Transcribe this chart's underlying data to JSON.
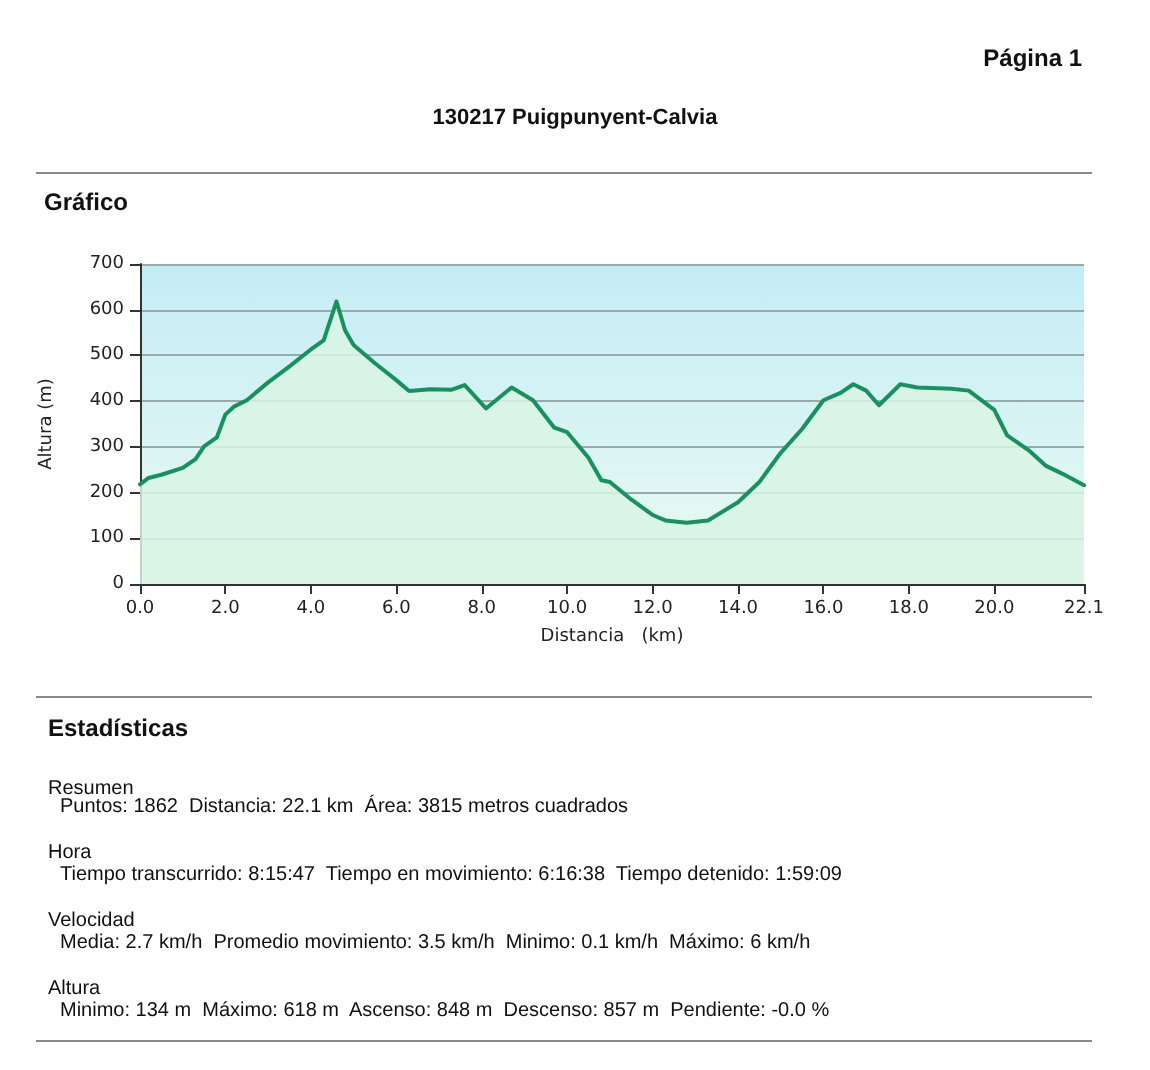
{
  "chart_data": {
    "type": "area",
    "title": "130217 Puigpunyent-Calvia",
    "xlabel": "Distancia   (km)",
    "ylabel": "Altura (m)",
    "annotations": [
      "Página 1",
      "Gráfico",
      "Estadísticas",
      "Resumen",
      "Puntos: 1862  Distancia: 22.1 km  Área: 3815 metros cuadrados",
      "Hora",
      "Tiempo transcurrido: 8:15:47  Tiempo en movimiento: 6:16:38  Tiempo detenido: 1:59:09",
      "Velocidad",
      "Media: 2.7 km/h  Promedio movimiento: 3.5 km/h  Minimo: 0.1 km/h  Máximo: 6 km/h",
      "Altura",
      "Minimo: 134 m  Máximo: 618 m  Ascenso: 848 m  Descenso: 857 m  Pendiente: -0.0 %"
    ],
    "x": [
      0,
      0.2,
      0.5,
      1.0,
      1.3,
      1.5,
      1.8,
      2.0,
      2.2,
      2.5,
      3.0,
      3.5,
      4.0,
      4.3,
      4.6,
      4.8,
      5.0,
      5.5,
      6.0,
      6.3,
      6.8,
      7.3,
      7.6,
      8.1,
      8.7,
      9.2,
      9.7,
      10.0,
      10.5,
      10.8,
      11.0,
      11.5,
      12.0,
      12.3,
      12.8,
      13.3,
      14.0,
      14.5,
      15.0,
      15.5,
      16.0,
      16.4,
      16.7,
      17.0,
      17.3,
      17.8,
      18.2,
      19.0,
      19.4,
      20.0,
      20.3,
      20.8,
      21.2,
      21.6,
      22.1
    ],
    "series": [
      {
        "color": "#1a9060",
        "values": [
          218,
          232,
          239,
          254,
          273,
          301,
          321,
          371,
          388,
          402,
          441,
          476,
          513,
          533,
          618,
          555,
          523,
          483,
          446,
          422,
          426,
          425,
          435,
          384,
          430,
          402,
          342,
          332,
          276,
          227,
          223,
          185,
          151,
          139,
          134,
          139,
          179,
          223,
          287,
          339,
          402,
          418,
          437,
          423,
          391,
          437,
          430,
          427,
          423,
          381,
          325,
          293,
          259,
          241,
          216
        ]
      }
    ],
    "xlim": [
      0,
      22.1
    ],
    "xticks": [
      {
        "value": 0,
        "label": "0.0"
      },
      {
        "value": 2,
        "label": "2.0"
      },
      {
        "value": 4,
        "label": "4.0"
      },
      {
        "value": 6,
        "label": "6.0"
      },
      {
        "value": 8,
        "label": "8.0"
      },
      {
        "value": 10,
        "label": "10.0"
      },
      {
        "value": 12,
        "label": "12.0"
      },
      {
        "value": 14,
        "label": "14.0"
      },
      {
        "value": 16,
        "label": "16.0"
      },
      {
        "value": 18,
        "label": "18.0"
      },
      {
        "value": 20,
        "label": "20.0"
      },
      22.1
    ],
    "ylim": [
      0,
      700
    ],
    "yticks": [
      0,
      100,
      200,
      300,
      400,
      500,
      600,
      700
    ],
    "grid": "y",
    "marker": "none",
    "line_style": "solid"
  }
}
